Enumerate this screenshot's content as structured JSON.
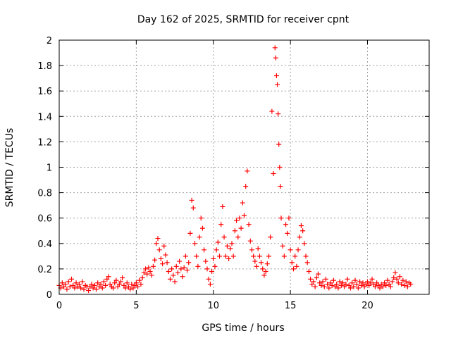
{
  "chart_data": {
    "type": "scatter",
    "title": "Day 162 of 2025, SRMTID for receiver cpnt",
    "xlabel": "GPS time / hours",
    "ylabel": "SRMTID / TECUs",
    "xlim": [
      0,
      24
    ],
    "ylim": [
      0,
      2
    ],
    "xticks": [
      0,
      5,
      10,
      15,
      20
    ],
    "xtick_labels": [
      "0",
      "5",
      "10",
      "15",
      "20"
    ],
    "yticks": [
      0,
      0.2,
      0.4,
      0.6,
      0.8,
      1,
      1.2,
      1.4,
      1.6,
      1.8,
      2
    ],
    "ytick_labels": [
      "0",
      "0.2",
      "0.4",
      "0.6",
      "0.8",
      "1",
      "1.2",
      "1.4",
      "1.6",
      "1.8",
      "2"
    ],
    "grid": true,
    "marker": "+",
    "color": "#ff0000",
    "series": [
      {
        "name": "SRMTID",
        "points": [
          [
            0.0,
            0.07
          ],
          [
            0.1,
            0.05
          ],
          [
            0.2,
            0.09
          ],
          [
            0.3,
            0.06
          ],
          [
            0.4,
            0.08
          ],
          [
            0.5,
            0.04
          ],
          [
            0.6,
            0.1
          ],
          [
            0.7,
            0.06
          ],
          [
            0.8,
            0.12
          ],
          [
            0.9,
            0.07
          ],
          [
            1.0,
            0.05
          ],
          [
            1.1,
            0.09
          ],
          [
            1.2,
            0.06
          ],
          [
            1.3,
            0.08
          ],
          [
            1.4,
            0.05
          ],
          [
            1.5,
            0.1
          ],
          [
            1.6,
            0.04
          ],
          [
            1.7,
            0.07
          ],
          [
            1.8,
            0.06
          ],
          [
            1.9,
            0.03
          ],
          [
            2.0,
            0.06
          ],
          [
            2.1,
            0.08
          ],
          [
            2.2,
            0.05
          ],
          [
            2.3,
            0.07
          ],
          [
            2.4,
            0.04
          ],
          [
            2.5,
            0.09
          ],
          [
            2.6,
            0.06
          ],
          [
            2.7,
            0.08
          ],
          [
            2.8,
            0.05
          ],
          [
            2.9,
            0.1
          ],
          [
            3.0,
            0.07
          ],
          [
            3.1,
            0.12
          ],
          [
            3.2,
            0.14
          ],
          [
            3.3,
            0.08
          ],
          [
            3.4,
            0.06
          ],
          [
            3.5,
            0.05
          ],
          [
            3.6,
            0.09
          ],
          [
            3.7,
            0.11
          ],
          [
            3.8,
            0.06
          ],
          [
            3.9,
            0.08
          ],
          [
            4.0,
            0.1
          ],
          [
            4.1,
            0.13
          ],
          [
            4.2,
            0.07
          ],
          [
            4.3,
            0.05
          ],
          [
            4.4,
            0.09
          ],
          [
            4.5,
            0.06
          ],
          [
            4.6,
            0.04
          ],
          [
            4.7,
            0.08
          ],
          [
            4.8,
            0.05
          ],
          [
            4.9,
            0.07
          ],
          [
            5.0,
            0.09
          ],
          [
            5.1,
            0.06
          ],
          [
            5.2,
            0.11
          ],
          [
            5.3,
            0.08
          ],
          [
            5.4,
            0.13
          ],
          [
            5.5,
            0.17
          ],
          [
            5.6,
            0.2
          ],
          [
            5.7,
            0.16
          ],
          [
            5.8,
            0.21
          ],
          [
            5.9,
            0.18
          ],
          [
            6.0,
            0.15
          ],
          [
            6.1,
            0.22
          ],
          [
            6.2,
            0.27
          ],
          [
            6.3,
            0.4
          ],
          [
            6.4,
            0.44
          ],
          [
            6.5,
            0.35
          ],
          [
            6.6,
            0.28
          ],
          [
            6.7,
            0.24
          ],
          [
            6.8,
            0.38
          ],
          [
            6.9,
            0.31
          ],
          [
            7.0,
            0.25
          ],
          [
            7.1,
            0.18
          ],
          [
            7.2,
            0.12
          ],
          [
            7.3,
            0.2
          ],
          [
            7.4,
            0.15
          ],
          [
            7.5,
            0.1
          ],
          [
            7.6,
            0.22
          ],
          [
            7.7,
            0.17
          ],
          [
            7.8,
            0.26
          ],
          [
            7.9,
            0.2
          ],
          [
            8.0,
            0.14
          ],
          [
            8.1,
            0.21
          ],
          [
            8.2,
            0.3
          ],
          [
            8.3,
            0.19
          ],
          [
            8.4,
            0.25
          ],
          [
            8.5,
            0.48
          ],
          [
            8.6,
            0.74
          ],
          [
            8.7,
            0.68
          ],
          [
            8.8,
            0.4
          ],
          [
            8.9,
            0.3
          ],
          [
            9.0,
            0.22
          ],
          [
            9.1,
            0.45
          ],
          [
            9.2,
            0.6
          ],
          [
            9.3,
            0.52
          ],
          [
            9.4,
            0.35
          ],
          [
            9.5,
            0.26
          ],
          [
            9.6,
            0.2
          ],
          [
            9.7,
            0.12
          ],
          [
            9.8,
            0.08
          ],
          [
            9.9,
            0.18
          ],
          [
            10.0,
            0.28
          ],
          [
            10.1,
            0.22
          ],
          [
            10.2,
            0.35
          ],
          [
            10.3,
            0.41
          ],
          [
            10.4,
            0.3
          ],
          [
            10.5,
            0.55
          ],
          [
            10.6,
            0.69
          ],
          [
            10.7,
            0.45
          ],
          [
            10.8,
            0.3
          ],
          [
            10.9,
            0.38
          ],
          [
            11.0,
            0.28
          ],
          [
            11.1,
            0.36
          ],
          [
            11.2,
            0.4
          ],
          [
            11.3,
            0.3
          ],
          [
            11.4,
            0.5
          ],
          [
            11.5,
            0.58
          ],
          [
            11.6,
            0.45
          ],
          [
            11.7,
            0.6
          ],
          [
            11.8,
            0.52
          ],
          [
            11.9,
            0.72
          ],
          [
            12.0,
            0.62
          ],
          [
            12.1,
            0.85
          ],
          [
            12.2,
            0.97
          ],
          [
            12.3,
            0.55
          ],
          [
            12.4,
            0.42
          ],
          [
            12.5,
            0.35
          ],
          [
            12.6,
            0.3
          ],
          [
            12.7,
            0.26
          ],
          [
            12.8,
            0.22
          ],
          [
            12.9,
            0.36
          ],
          [
            13.0,
            0.3
          ],
          [
            13.1,
            0.25
          ],
          [
            13.2,
            0.2
          ],
          [
            13.3,
            0.15
          ],
          [
            13.4,
            0.18
          ],
          [
            13.5,
            0.24
          ],
          [
            13.6,
            0.3
          ],
          [
            13.7,
            0.45
          ],
          [
            13.8,
            1.44
          ],
          [
            13.9,
            0.95
          ],
          [
            14.0,
            1.94
          ],
          [
            14.05,
            1.86
          ],
          [
            14.1,
            1.72
          ],
          [
            14.15,
            1.65
          ],
          [
            14.2,
            1.42
          ],
          [
            14.25,
            1.18
          ],
          [
            14.3,
            1.0
          ],
          [
            14.35,
            0.85
          ],
          [
            14.4,
            0.6
          ],
          [
            14.5,
            0.38
          ],
          [
            14.6,
            0.3
          ],
          [
            14.7,
            0.55
          ],
          [
            14.8,
            0.48
          ],
          [
            14.9,
            0.6
          ],
          [
            15.0,
            0.35
          ],
          [
            15.1,
            0.25
          ],
          [
            15.2,
            0.2
          ],
          [
            15.3,
            0.3
          ],
          [
            15.4,
            0.22
          ],
          [
            15.5,
            0.35
          ],
          [
            15.6,
            0.45
          ],
          [
            15.7,
            0.54
          ],
          [
            15.8,
            0.5
          ],
          [
            15.9,
            0.4
          ],
          [
            16.0,
            0.3
          ],
          [
            16.1,
            0.25
          ],
          [
            16.2,
            0.18
          ],
          [
            16.3,
            0.12
          ],
          [
            16.4,
            0.08
          ],
          [
            16.5,
            0.1
          ],
          [
            16.6,
            0.06
          ],
          [
            16.7,
            0.13
          ],
          [
            16.8,
            0.16
          ],
          [
            16.9,
            0.09
          ],
          [
            17.0,
            0.07
          ],
          [
            17.1,
            0.1
          ],
          [
            17.2,
            0.06
          ],
          [
            17.3,
            0.12
          ],
          [
            17.4,
            0.08
          ],
          [
            17.5,
            0.05
          ],
          [
            17.6,
            0.09
          ],
          [
            17.7,
            0.07
          ],
          [
            17.8,
            0.11
          ],
          [
            17.9,
            0.06
          ],
          [
            18.0,
            0.08
          ],
          [
            18.1,
            0.05
          ],
          [
            18.2,
            0.1
          ],
          [
            18.3,
            0.07
          ],
          [
            18.4,
            0.09
          ],
          [
            18.5,
            0.06
          ],
          [
            18.6,
            0.08
          ],
          [
            18.7,
            0.12
          ],
          [
            18.8,
            0.07
          ],
          [
            18.9,
            0.05
          ],
          [
            19.0,
            0.09
          ],
          [
            19.1,
            0.06
          ],
          [
            19.2,
            0.11
          ],
          [
            19.3,
            0.08
          ],
          [
            19.4,
            0.05
          ],
          [
            19.5,
            0.1
          ],
          [
            19.6,
            0.07
          ],
          [
            19.7,
            0.09
          ],
          [
            19.8,
            0.06
          ],
          [
            19.9,
            0.08
          ],
          [
            20.0,
            0.1
          ],
          [
            20.1,
            0.07
          ],
          [
            20.2,
            0.09
          ],
          [
            20.3,
            0.12
          ],
          [
            20.4,
            0.08
          ],
          [
            20.5,
            0.06
          ],
          [
            20.6,
            0.09
          ],
          [
            20.7,
            0.07
          ],
          [
            20.8,
            0.05
          ],
          [
            20.9,
            0.08
          ],
          [
            21.0,
            0.06
          ],
          [
            21.1,
            0.09
          ],
          [
            21.2,
            0.07
          ],
          [
            21.3,
            0.11
          ],
          [
            21.4,
            0.08
          ],
          [
            21.5,
            0.06
          ],
          [
            21.6,
            0.1
          ],
          [
            21.7,
            0.13
          ],
          [
            21.8,
            0.17
          ],
          [
            21.9,
            0.12
          ],
          [
            22.0,
            0.09
          ],
          [
            22.1,
            0.14
          ],
          [
            22.2,
            0.08
          ],
          [
            22.3,
            0.11
          ],
          [
            22.4,
            0.07
          ],
          [
            22.5,
            0.1
          ],
          [
            22.6,
            0.06
          ],
          [
            22.7,
            0.09
          ],
          [
            22.8,
            0.08
          ]
        ]
      }
    ]
  }
}
